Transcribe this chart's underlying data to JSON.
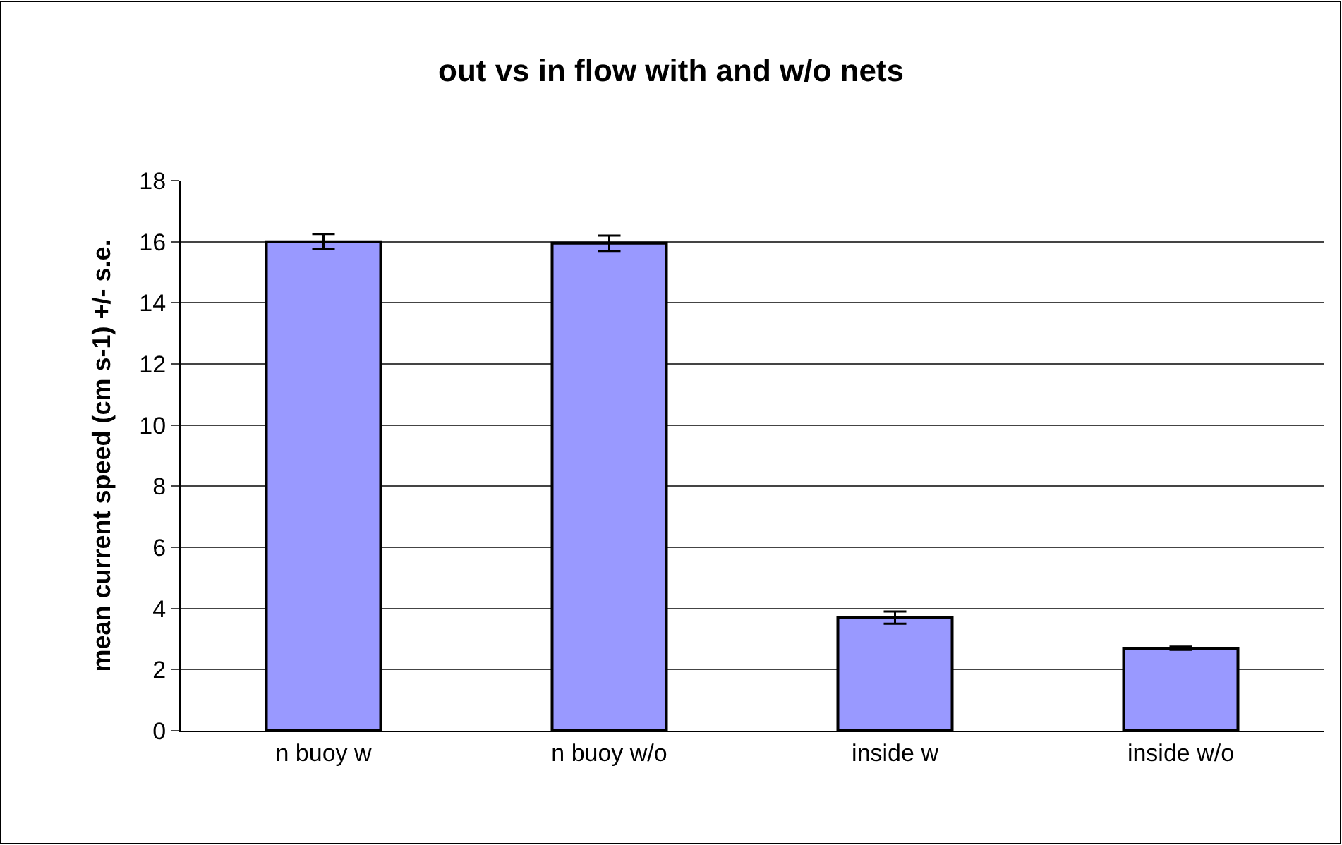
{
  "chart_data": {
    "type": "bar",
    "title": "out vs in flow with and w/o nets",
    "ylabel": "mean current speed (cm s-1) +/- s.e.",
    "categories": [
      "n buoy w",
      "n buoy w/o",
      "inside w",
      "inside w/o"
    ],
    "values": [
      16.0,
      15.95,
      3.7,
      2.7
    ],
    "errors": [
      0.25,
      0.25,
      0.2,
      0.05
    ],
    "color": "#9999ff",
    "ylim": [
      0,
      18
    ],
    "yticks": [
      0,
      2,
      4,
      6,
      8,
      10,
      12,
      14,
      16,
      18
    ],
    "grid": "y",
    "legend": false
  }
}
